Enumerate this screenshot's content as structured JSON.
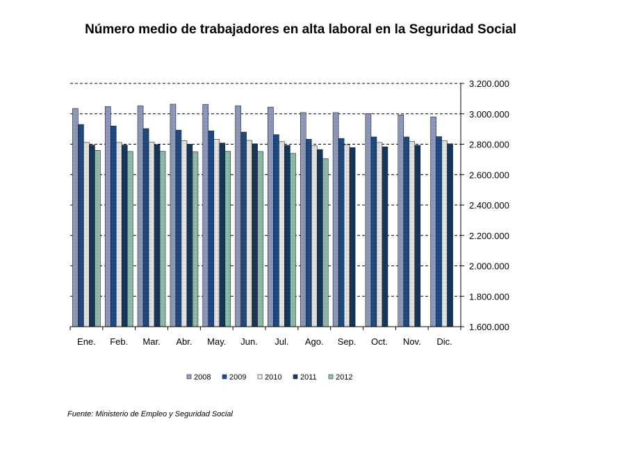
{
  "chart_data": {
    "type": "bar",
    "title": "Número medio de trabajadores en alta laboral en la Seguridad Social",
    "xlabel": "",
    "ylabel": "",
    "categories": [
      "Ene.",
      "Feb.",
      "Mar.",
      "Abr.",
      "May.",
      "Jun.",
      "Jul.",
      "Ago.",
      "Sep.",
      "Oct.",
      "Nov.",
      "Dic."
    ],
    "ylim": [
      1600000,
      3200000
    ],
    "yticks": [
      1600000,
      1800000,
      2000000,
      2200000,
      2400000,
      2600000,
      2800000,
      3000000,
      3200000
    ],
    "ytick_labels": [
      "1.600.000",
      "1.800.000",
      "2.000.000",
      "2.200.000",
      "2.400.000",
      "2.600.000",
      "2.800.000",
      "3.000.000",
      "3.200.000"
    ],
    "y_axis_side": "right",
    "grid": "horizontal dashed",
    "legend_position": "bottom",
    "series": [
      {
        "name": "2008",
        "color": "#8FA2D4",
        "values": [
          3035000,
          3048000,
          3053000,
          3063000,
          3062000,
          3053000,
          3044000,
          3008000,
          3008000,
          3002000,
          2993000,
          2980000
        ]
      },
      {
        "name": "2009",
        "color": "#14509E",
        "values": [
          2930000,
          2920000,
          2903000,
          2893000,
          2888000,
          2880000,
          2863000,
          2833000,
          2838000,
          2848000,
          2848000,
          2850000
        ]
      },
      {
        "name": "2010",
        "color": "#F0F0F0",
        "values": [
          2812000,
          2812000,
          2815000,
          2823000,
          2833000,
          2825000,
          2817000,
          2790000,
          2797000,
          2812000,
          2818000,
          2822000
        ]
      },
      {
        "name": "2011",
        "color": "#0D3C6E",
        "values": [
          2795000,
          2795000,
          2798000,
          2800000,
          2808000,
          2803000,
          2793000,
          2765000,
          2778000,
          2783000,
          2793000,
          2803000
        ]
      },
      {
        "name": "2012",
        "color": "#8CCBB0",
        "values": [
          2760000,
          2752000,
          2753000,
          2750000,
          2753000,
          2752000,
          2740000,
          2705000,
          null,
          null,
          null,
          null
        ]
      }
    ]
  },
  "source_note": "Fuente: Ministerio de Empleo y Seguridad Social"
}
